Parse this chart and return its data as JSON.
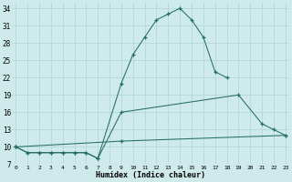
{
  "xlabel": "Humidex (Indice chaleur)",
  "line1_x": [
    0,
    1,
    2,
    3,
    4,
    5,
    6,
    7,
    9,
    10,
    11,
    12,
    13,
    14,
    15,
    16,
    17,
    18
  ],
  "line1_y": [
    10,
    9,
    9,
    9,
    9,
    9,
    9,
    8,
    21,
    26,
    29,
    32,
    33,
    34,
    32,
    29,
    23,
    22
  ],
  "line2_x": [
    0,
    1,
    2,
    3,
    4,
    5,
    6,
    7,
    9,
    19,
    21,
    22,
    23
  ],
  "line2_y": [
    10,
    9,
    9,
    9,
    9,
    9,
    9,
    8,
    16,
    19,
    14,
    13,
    12
  ],
  "line3_x": [
    0,
    9,
    23
  ],
  "line3_y": [
    10,
    11,
    12
  ],
  "color": "#256e62",
  "bg_color": "#ceeaea",
  "grid_color": "#aed4d4",
  "ylim": [
    7,
    35
  ],
  "xlim": [
    -0.3,
    23.3
  ],
  "yticks": [
    7,
    10,
    13,
    16,
    19,
    22,
    25,
    28,
    31,
    34
  ],
  "xticks": [
    0,
    1,
    2,
    3,
    4,
    5,
    6,
    7,
    8,
    9,
    10,
    11,
    12,
    13,
    14,
    15,
    16,
    17,
    18,
    19,
    20,
    21,
    22,
    23
  ]
}
